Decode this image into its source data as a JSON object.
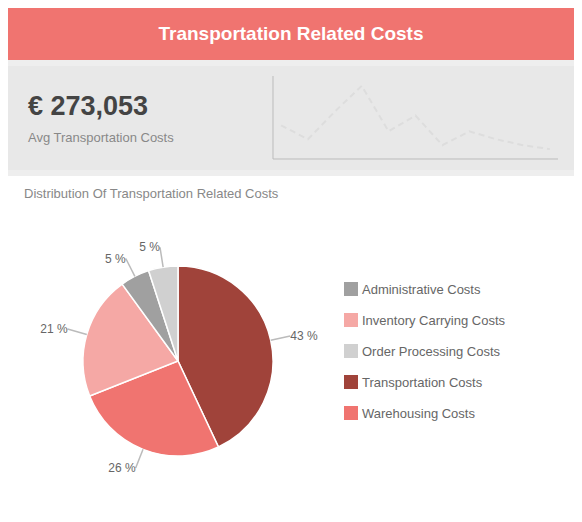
{
  "chart_data": [
    {
      "type": "line",
      "title": "Transportation Related Costs",
      "annotations": [
        "€ 273,053",
        "Avg Transportation Costs"
      ],
      "x": [
        0,
        1,
        2,
        3,
        4,
        5,
        6,
        7,
        8,
        9,
        10
      ],
      "values": [
        3.5,
        2.8,
        4.2,
        5.5,
        3.2,
        4.0,
        2.5,
        3.2,
        2.8,
        2.5,
        2.3
      ],
      "color": "#DDDDDD",
      "line_style": "dashed",
      "xlim": [
        -0.3,
        10.3
      ],
      "ylim": [
        1.8,
        6.0
      ],
      "tick_labels": false,
      "grid": false
    },
    {
      "type": "pie",
      "title": "Distribution Of Transportation Related Costs",
      "categories": [
        "Transportation Costs",
        "Warehousing Costs",
        "Inventory Carrying Costs",
        "Administrative Costs",
        "Order Processing Costs"
      ],
      "values": [
        43,
        26,
        21,
        5,
        5
      ],
      "value_labels": [
        "43 %",
        "26 %",
        "21 %",
        "5 %",
        "5 %"
      ],
      "colors": [
        "#A0433A",
        "#F07470",
        "#F5A8A5",
        "#A0A0A0",
        "#D0D0D0"
      ],
      "data_labels": true,
      "legend": "right"
    }
  ]
}
